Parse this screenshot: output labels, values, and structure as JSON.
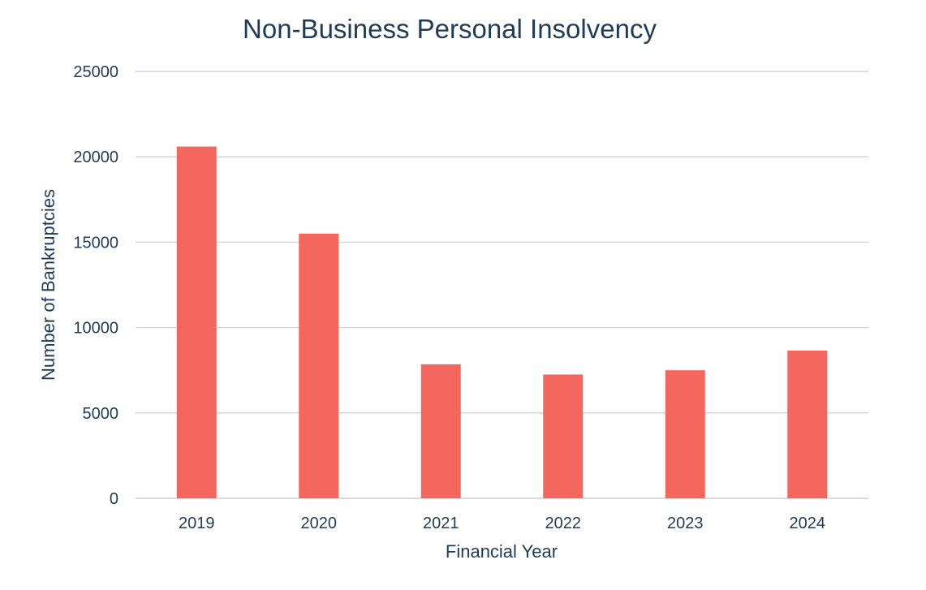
{
  "chart_data": {
    "type": "bar",
    "title": "Non-Business Personal Insolvency",
    "xlabel": "Financial Year",
    "ylabel": "Number of Bankruptcies",
    "categories": [
      "2019",
      "2020",
      "2021",
      "2022",
      "2023",
      "2024"
    ],
    "values": [
      20600,
      15500,
      7850,
      7250,
      7500,
      8650
    ],
    "ylim": [
      0,
      25000
    ],
    "yticks": [
      "0",
      "5000",
      "10000",
      "15000",
      "20000",
      "25000"
    ],
    "grid": true,
    "legend": "none",
    "bar_color": "#f4675f",
    "text_color": "#1f3b57",
    "grid_color": "#d6d6d6"
  }
}
